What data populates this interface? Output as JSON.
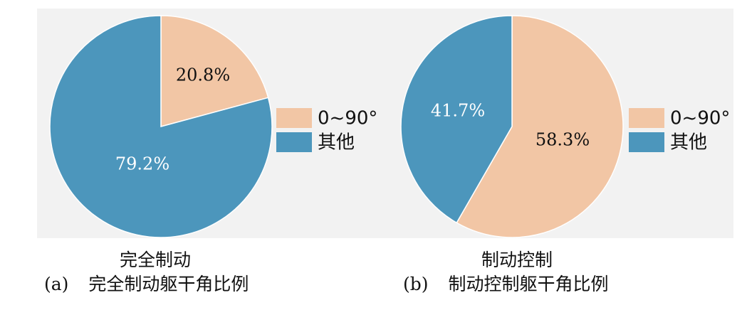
{
  "colors": {
    "range_0_90": "#f2c6a5",
    "other": "#4c96bc",
    "label_dark": "#111111",
    "label_light": "#ffffff"
  },
  "chart_data": [
    {
      "type": "pie",
      "title": "完全制动",
      "slices": [
        {
          "label": "0~90°",
          "value": 20.8,
          "display": "20.8%",
          "color": "#f2c6a5"
        },
        {
          "label": "其他",
          "value": 79.2,
          "display": "79.2%",
          "color": "#4c96bc"
        }
      ],
      "legend": [
        "0~90°",
        "其他"
      ],
      "legend_position": "right"
    },
    {
      "type": "pie",
      "title": "制动控制",
      "slices": [
        {
          "label": "0~90°",
          "value": 58.3,
          "display": "58.3%",
          "color": "#f2c6a5"
        },
        {
          "label": "其他",
          "value": 41.7,
          "display": "41.7%",
          "color": "#4c96bc"
        }
      ],
      "legend": [
        "0~90°",
        "其他"
      ],
      "legend_position": "right"
    }
  ],
  "captions": [
    {
      "letter": "(a)",
      "text": "完全制动躯干角比例"
    },
    {
      "letter": "(b)",
      "text": "制动控制躯干角比例"
    }
  ]
}
